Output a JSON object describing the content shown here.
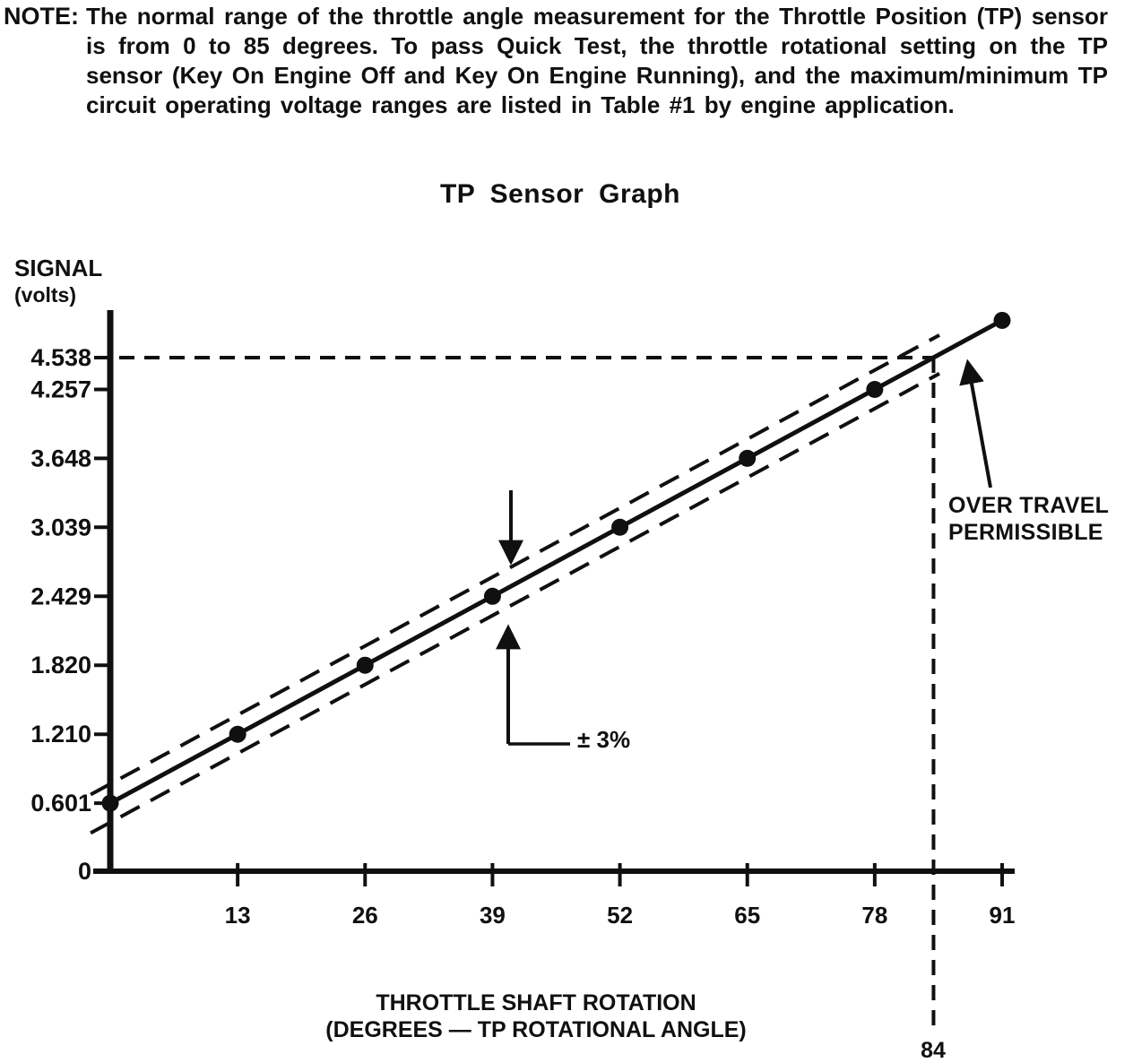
{
  "note": {
    "label": "NOTE:",
    "text": "The normal range of the throttle angle measurement for the Throttle Position (TP) sensor is from 0 to 85 degrees. To pass Quick Test, the throttle rotational setting on the TP sensor (Key On Engine Off and Key On Engine Running), and the maximum/minimum TP circuit operating voltage ranges are listed in Table #1 by engine application."
  },
  "chart_data": {
    "type": "line",
    "title": "TP Sensor Graph",
    "ylabel": "SIGNAL (volts)",
    "ylabel_display": {
      "line1": "SIGNAL",
      "line2": "(volts)"
    },
    "xlabel": "THROTTLE SHAFT ROTATION (DEGREES — TP ROTATIONAL ANGLE)",
    "xlabel_display": {
      "line1": "THROTTLE SHAFT ROTATION",
      "line2": "(DEGREES — TP ROTATIONAL ANGLE)"
    },
    "xlim": [
      0,
      93
    ],
    "ylim": [
      0,
      5
    ],
    "grid": false,
    "legend": "none",
    "x_ticks": [
      13,
      26,
      39,
      52,
      65,
      78,
      91
    ],
    "x_tick_labels": [
      "13",
      "26",
      "39",
      "52",
      "65",
      "78",
      "91"
    ],
    "y_ticks": [
      0,
      0.601,
      1.21,
      1.82,
      2.429,
      3.039,
      3.648,
      4.257,
      4.538
    ],
    "y_tick_labels": [
      "0",
      "0.601",
      "1.210",
      "1.820",
      "2.429",
      "3.039",
      "3.648",
      "4.257",
      "4.538"
    ],
    "series": [
      {
        "name": "TP sensor signal (nominal)",
        "style": "solid-with-dots",
        "x": [
          0,
          13,
          26,
          39,
          52,
          65,
          78,
          91
        ],
        "y": [
          0.601,
          1.21,
          1.82,
          2.429,
          3.039,
          3.648,
          4.257,
          4.867
        ]
      },
      {
        "name": "+3% tolerance",
        "style": "dashed",
        "offset_volts": 0.17
      },
      {
        "name": "-3% tolerance",
        "style": "dashed",
        "offset_volts": -0.17
      }
    ],
    "reference": {
      "voltage": 4.538,
      "degrees": 84,
      "degrees_label": "84"
    },
    "annotations": {
      "tolerance_label": "± 3%",
      "over_travel_line1": "OVER TRAVEL",
      "over_travel_line2": "PERMISSIBLE"
    }
  }
}
